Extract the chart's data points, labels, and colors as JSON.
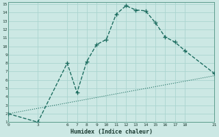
{
  "xlabel": "Humidex (Indice chaleur)",
  "bg_color": "#cce8e4",
  "grid_color": "#aad4cf",
  "line_color": "#1a6b5e",
  "curve1_x": [
    0,
    3,
    6,
    7,
    8,
    9,
    10,
    11,
    12,
    13,
    14,
    15,
    16,
    17,
    18,
    21
  ],
  "curve1_y": [
    2.0,
    1.0,
    8.0,
    4.5,
    8.2,
    10.2,
    10.8,
    13.8,
    14.8,
    14.3,
    14.2,
    12.8,
    11.1,
    10.5,
    9.5,
    6.8
  ],
  "curve2_x": [
    0,
    21
  ],
  "curve2_y": [
    2.0,
    6.5
  ],
  "xlim": [
    0,
    21
  ],
  "ylim": [
    1,
    15
  ],
  "xticks": [
    0,
    3,
    6,
    7,
    8,
    9,
    10,
    11,
    12,
    13,
    14,
    15,
    16,
    17,
    18,
    21
  ],
  "yticks": [
    1,
    2,
    3,
    4,
    5,
    6,
    7,
    8,
    9,
    10,
    11,
    12,
    13,
    14,
    15
  ]
}
